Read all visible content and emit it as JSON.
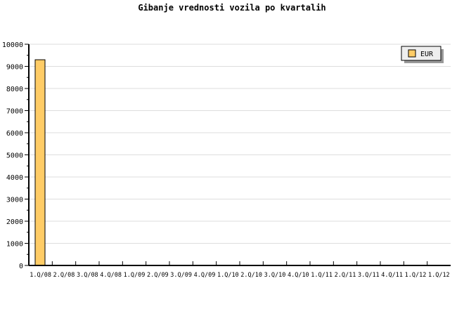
{
  "chart_data": {
    "type": "bar",
    "title": "Gibanje vrednosti vozila po kvartalih",
    "xlabel": "",
    "ylabel": "",
    "categories": [
      "1.Q/08",
      "2.Q/08",
      "3.Q/08",
      "4.Q/08",
      "1.Q/09",
      "2.Q/09",
      "3.Q/09",
      "4.Q/09",
      "1.Q/10",
      "2.Q/10",
      "3.Q/10",
      "4.Q/10",
      "1.Q/11",
      "2.Q/11",
      "3.Q/11",
      "4.Q/11",
      "1.Q/12",
      "1.Q/12"
    ],
    "series": [
      {
        "name": "EUR",
        "values": [
          9300,
          0,
          0,
          0,
          0,
          0,
          0,
          0,
          0,
          0,
          0,
          0,
          0,
          0,
          0,
          0,
          0,
          0
        ],
        "color": "#ffcc66"
      }
    ],
    "ylim": [
      0,
      10000
    ],
    "yticks": [
      0,
      1000,
      2000,
      3000,
      4000,
      5000,
      6000,
      7000,
      8000,
      9000,
      10000
    ],
    "grid": true,
    "legend_position": "top-right"
  }
}
